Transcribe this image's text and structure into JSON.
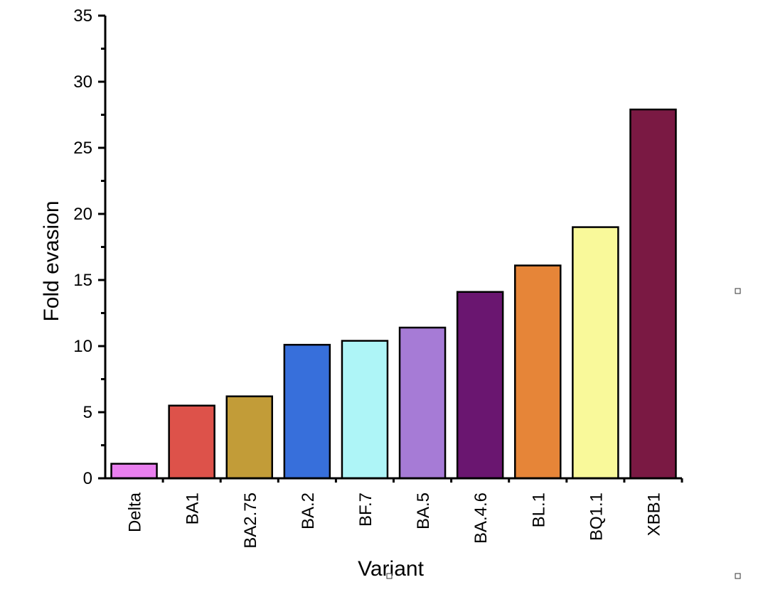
{
  "chart_data": {
    "type": "bar",
    "title": "",
    "xlabel": "Variant",
    "ylabel": "Fold evasion",
    "ylim": [
      0,
      35
    ],
    "yticks": [
      0,
      5,
      10,
      15,
      20,
      25,
      30,
      35
    ],
    "categories": [
      "Delta",
      "BA1",
      "BA2.75",
      "BA.2",
      "BF.7",
      "BA.5",
      "BA.4.6",
      "BL.1",
      "BQ1.1",
      "XBB1"
    ],
    "values": [
      1.1,
      5.5,
      6.2,
      10.1,
      10.4,
      11.4,
      14.1,
      16.1,
      19.0,
      27.9
    ],
    "colors": [
      "#e97fef",
      "#dd524a",
      "#c29c38",
      "#376fdb",
      "#aef5f7",
      "#a67bd6",
      "#6a1670",
      "#e68538",
      "#f9f99a",
      "#7a1943"
    ],
    "grid": false,
    "legend": "none"
  }
}
